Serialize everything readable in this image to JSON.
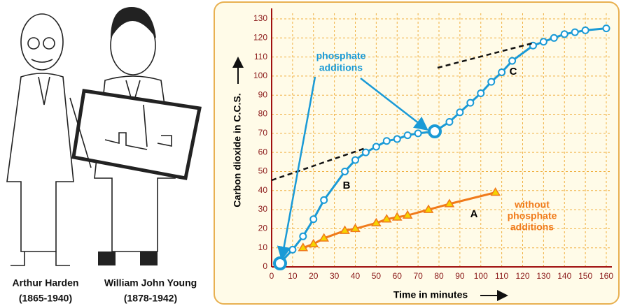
{
  "captions": [
    [
      "Arthur Harden",
      "(1865-1940)"
    ],
    [
      "William John Young",
      "(1878-1942)"
    ]
  ],
  "chart_data": {
    "type": "line",
    "x_label": "Time in minutes",
    "y_label": "Carbon dioxide in C.C.S.",
    "xlim": [
      0,
      160
    ],
    "xticks": [
      0,
      10,
      20,
      30,
      40,
      50,
      60,
      70,
      80,
      90,
      100,
      110,
      120,
      130,
      140,
      150,
      160
    ],
    "ylim": [
      0,
      130
    ],
    "yticks": [
      0,
      10,
      20,
      30,
      40,
      50,
      60,
      70,
      80,
      90,
      100,
      110,
      120,
      130
    ],
    "grid": true,
    "series": [
      {
        "name": "B",
        "color": "#1a9ad6",
        "marker": "circle",
        "x": [
          4,
          10,
          15,
          20,
          25,
          35,
          40,
          45,
          50,
          55,
          60,
          65,
          70,
          78,
          85,
          90,
          95,
          100,
          105,
          110,
          115,
          125,
          130,
          135,
          140,
          145,
          150,
          160
        ],
        "values": [
          2,
          9,
          16,
          25,
          35,
          50,
          56,
          60,
          63,
          66,
          67,
          69,
          70,
          71,
          76,
          81,
          86,
          91,
          97,
          102,
          108,
          116,
          118,
          120,
          122,
          123,
          124,
          125
        ]
      },
      {
        "name": "A",
        "color": "#f07a1a",
        "marker": "triangle",
        "x": [
          15,
          20,
          25,
          35,
          40,
          50,
          55,
          60,
          65,
          75,
          85,
          107
        ],
        "values": [
          10,
          12,
          15,
          19,
          20,
          23,
          25,
          26,
          27,
          30,
          33,
          39
        ]
      }
    ],
    "annotations": {
      "phosphate": [
        "phosphate",
        "additions"
      ],
      "stage": "C",
      "without": [
        "without",
        "phosphate",
        "additions"
      ]
    }
  }
}
